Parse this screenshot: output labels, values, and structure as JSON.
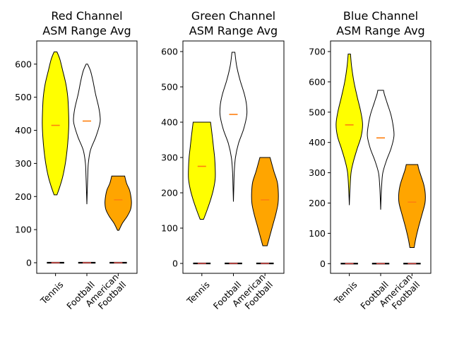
{
  "chart_data": [
    {
      "type": "violin",
      "title": [
        "Red Channel",
        "ASM Range Avg"
      ],
      "categories": [
        "Tennis",
        "Football",
        "American\nFootball"
      ],
      "yticks": [
        0,
        100,
        200,
        300,
        400,
        500,
        600
      ],
      "ylim": [
        -32,
        670
      ],
      "colors": [
        "#ffff00",
        "#ffffff",
        "#ffa500"
      ],
      "median_color": "#ff7f0e",
      "violins": [
        {
          "profile": [
            [
              205,
              0.1
            ],
            [
              230,
              0.3
            ],
            [
              260,
              0.5
            ],
            [
              300,
              0.68
            ],
            [
              340,
              0.8
            ],
            [
              380,
              0.88
            ],
            [
              420,
              0.92
            ],
            [
              460,
              0.9
            ],
            [
              500,
              0.85
            ],
            [
              540,
              0.72
            ],
            [
              580,
              0.5
            ],
            [
              615,
              0.3
            ],
            [
              637,
              0.1
            ]
          ],
          "median": 415
        },
        {
          "profile": [
            [
              177,
              0.0
            ],
            [
              220,
              0.03
            ],
            [
              260,
              0.06
            ],
            [
              300,
              0.1
            ],
            [
              340,
              0.25
            ],
            [
              380,
              0.62
            ],
            [
              420,
              0.9
            ],
            [
              440,
              0.92
            ],
            [
              470,
              0.82
            ],
            [
              510,
              0.6
            ],
            [
              550,
              0.42
            ],
            [
              580,
              0.25
            ],
            [
              600,
              0.05
            ]
          ],
          "median": 428
        },
        {
          "profile": [
            [
              98,
              0.05
            ],
            [
              120,
              0.3
            ],
            [
              140,
              0.62
            ],
            [
              160,
              0.85
            ],
            [
              180,
              0.92
            ],
            [
              200,
              0.88
            ],
            [
              220,
              0.78
            ],
            [
              240,
              0.58
            ],
            [
              262,
              0.45
            ]
          ],
          "median": 190
        }
      ],
      "zero_groups": [
        {
          "median": 0
        },
        {
          "median": 0
        },
        {
          "median": 0
        }
      ]
    },
    {
      "type": "violin",
      "title": [
        "Green Channel",
        "ASM Range  Avg"
      ],
      "categories": [
        "Tennis",
        "Football",
        "American\nFootball"
      ],
      "yticks": [
        0,
        100,
        200,
        300,
        400,
        500,
        600
      ],
      "ylim": [
        -28,
        630
      ],
      "colors": [
        "#ffff00",
        "#ffffff",
        "#ffa500"
      ],
      "median_color": "#ff7f0e",
      "violins": [
        {
          "profile": [
            [
              125,
              0.12
            ],
            [
              150,
              0.35
            ],
            [
              180,
              0.6
            ],
            [
              210,
              0.8
            ],
            [
              240,
              0.92
            ],
            [
              270,
              0.92
            ],
            [
              300,
              0.88
            ],
            [
              330,
              0.8
            ],
            [
              360,
              0.72
            ],
            [
              400,
              0.6
            ]
          ],
          "median": 275
        },
        {
          "profile": [
            [
              175,
              0.0
            ],
            [
              220,
              0.03
            ],
            [
              260,
              0.06
            ],
            [
              300,
              0.14
            ],
            [
              340,
              0.35
            ],
            [
              380,
              0.7
            ],
            [
              420,
              0.92
            ],
            [
              450,
              0.9
            ],
            [
              480,
              0.75
            ],
            [
              520,
              0.45
            ],
            [
              560,
              0.22
            ],
            [
              598,
              0.1
            ]
          ],
          "median": 422
        },
        {
          "profile": [
            [
              50,
              0.15
            ],
            [
              80,
              0.35
            ],
            [
              110,
              0.55
            ],
            [
              140,
              0.75
            ],
            [
              170,
              0.9
            ],
            [
              200,
              0.92
            ],
            [
              230,
              0.85
            ],
            [
              260,
              0.62
            ],
            [
              285,
              0.45
            ],
            [
              300,
              0.35
            ]
          ],
          "median": 180
        }
      ],
      "zero_groups": [
        {
          "median": 0
        },
        {
          "median": 0
        },
        {
          "median": 0
        }
      ]
    },
    {
      "type": "violin",
      "title": [
        "Blue Channel",
        "ASM Range Avg"
      ],
      "categories": [
        "Tennis",
        "Football",
        "American\nFootball"
      ],
      "yticks": [
        0,
        100,
        200,
        300,
        400,
        500,
        600,
        700
      ],
      "ylim": [
        -32,
        735
      ],
      "colors": [
        "#ffff00",
        "#ffffff",
        "#ffa500"
      ],
      "median_color": "#ff7f0e",
      "violins": [
        {
          "profile": [
            [
              193,
              0.0
            ],
            [
              240,
              0.04
            ],
            [
              300,
              0.12
            ],
            [
              340,
              0.3
            ],
            [
              380,
              0.55
            ],
            [
              420,
              0.82
            ],
            [
              460,
              0.92
            ],
            [
              500,
              0.8
            ],
            [
              550,
              0.55
            ],
            [
              600,
              0.32
            ],
            [
              650,
              0.16
            ],
            [
              692,
              0.08
            ]
          ],
          "median": 458
        },
        {
          "profile": [
            [
              178,
              0.0
            ],
            [
              220,
              0.03
            ],
            [
              260,
              0.07
            ],
            [
              300,
              0.15
            ],
            [
              340,
              0.4
            ],
            [
              380,
              0.72
            ],
            [
              420,
              0.92
            ],
            [
              450,
              0.88
            ],
            [
              490,
              0.72
            ],
            [
              530,
              0.45
            ],
            [
              560,
              0.25
            ],
            [
              572,
              0.2
            ]
          ],
          "median": 415
        },
        {
          "profile": [
            [
              53,
              0.15
            ],
            [
              80,
              0.25
            ],
            [
              120,
              0.45
            ],
            [
              160,
              0.68
            ],
            [
              200,
              0.9
            ],
            [
              230,
              0.92
            ],
            [
              260,
              0.82
            ],
            [
              290,
              0.62
            ],
            [
              310,
              0.48
            ],
            [
              327,
              0.4
            ]
          ],
          "median": 203
        }
      ],
      "zero_groups": [
        {
          "median": 0
        },
        {
          "median": 0
        },
        {
          "median": 0
        }
      ]
    }
  ]
}
